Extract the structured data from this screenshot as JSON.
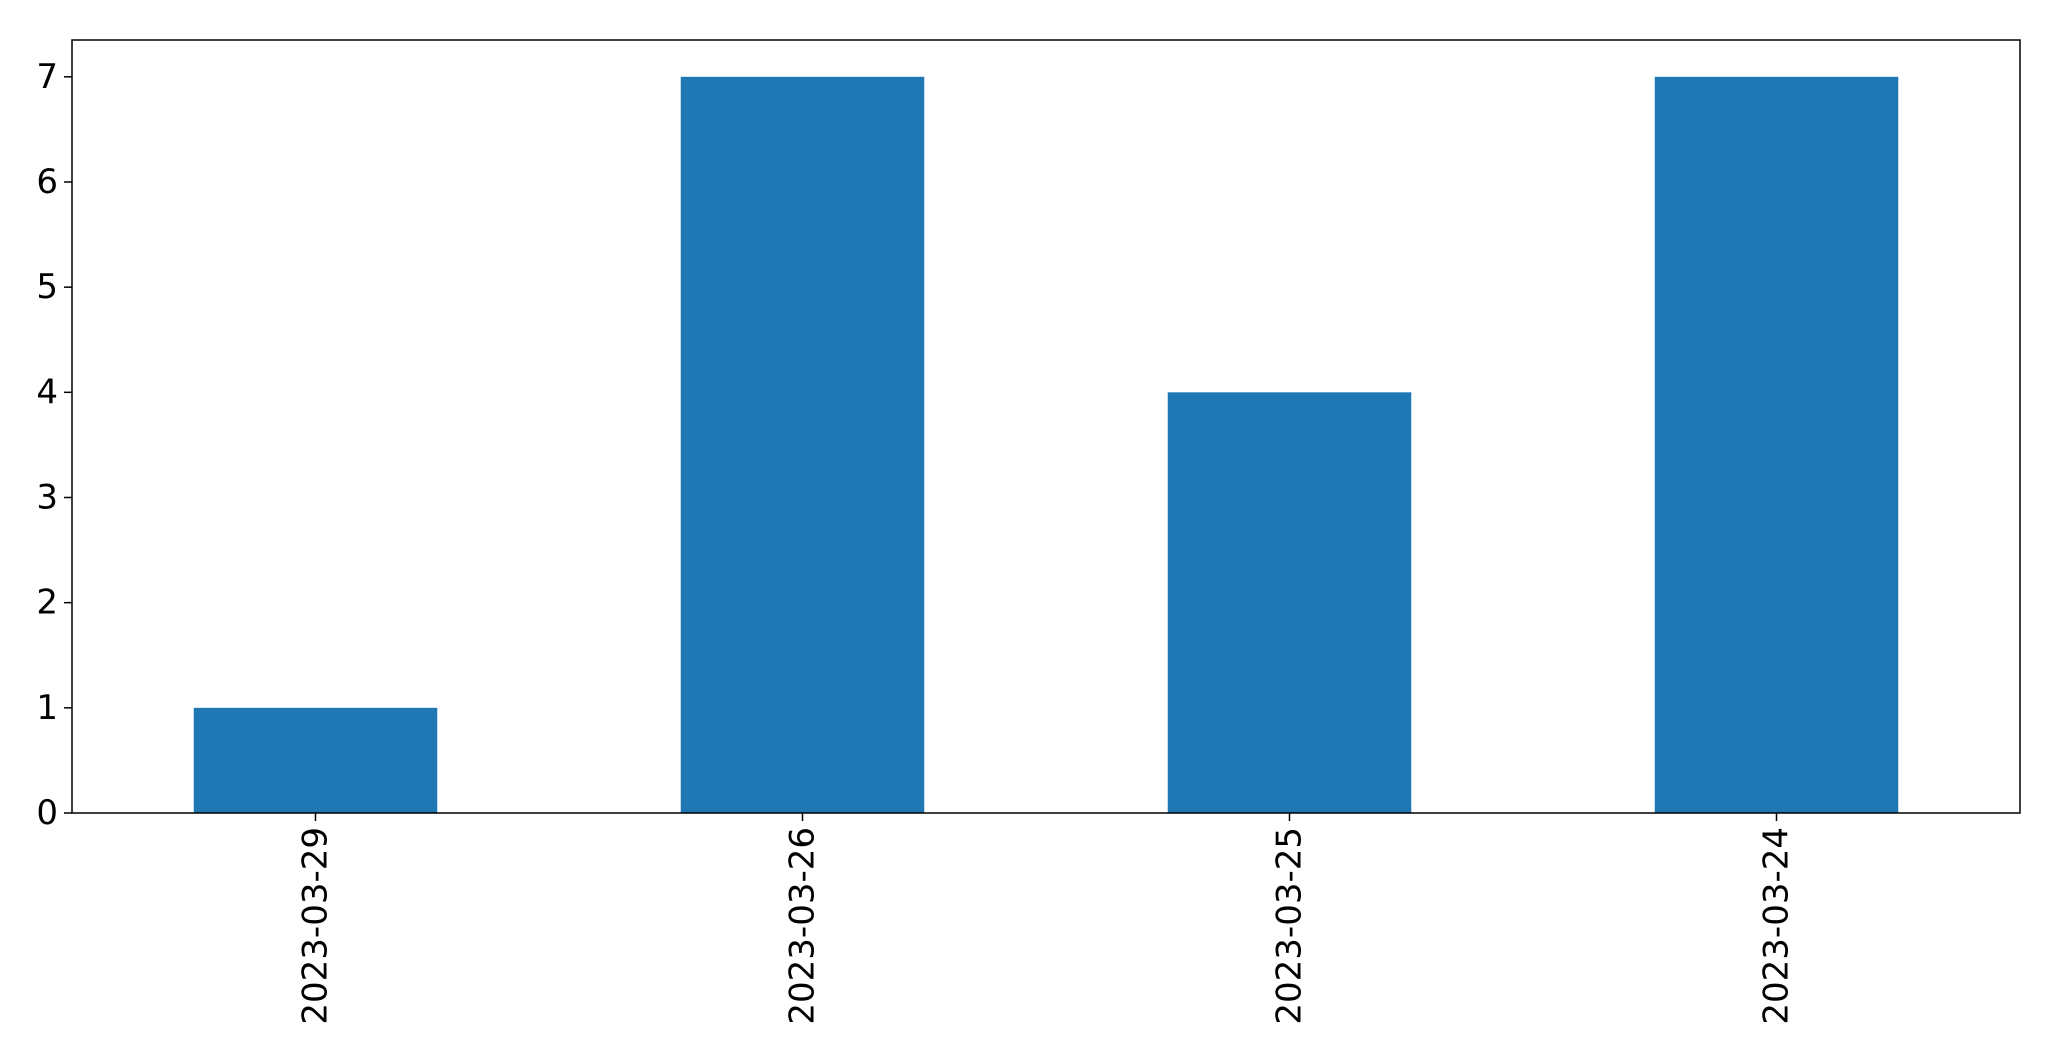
{
  "chart_data": {
    "type": "bar",
    "categories": [
      "2023-03-29",
      "2023-03-26",
      "2023-03-25",
      "2023-03-24"
    ],
    "values": [
      1,
      7,
      4,
      7
    ],
    "ylim": [
      0,
      7.35
    ],
    "yticks": [
      0,
      1,
      2,
      3,
      4,
      5,
      6,
      7
    ],
    "bar_color": "#1f77b4",
    "grid": false,
    "legend": "none",
    "xlabel": "",
    "ylabel": "",
    "title": ""
  }
}
